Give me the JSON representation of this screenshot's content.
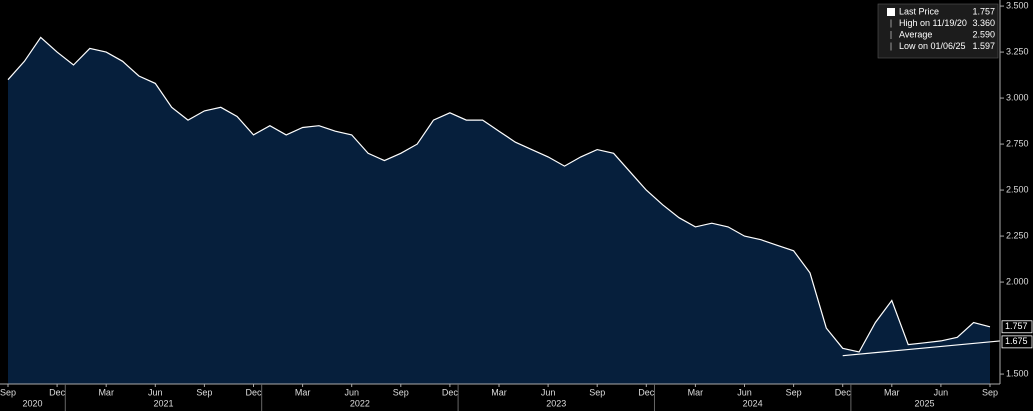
{
  "chart_data": {
    "type": "area",
    "x": [
      "2020-09",
      "2020-10",
      "2020-11",
      "2020-12",
      "2021-01",
      "2021-02",
      "2021-03",
      "2021-04",
      "2021-05",
      "2021-06",
      "2021-07",
      "2021-08",
      "2021-09",
      "2021-10",
      "2021-11",
      "2021-12",
      "2022-01",
      "2022-02",
      "2022-03",
      "2022-04",
      "2022-05",
      "2022-06",
      "2022-07",
      "2022-08",
      "2022-09",
      "2022-10",
      "2022-11",
      "2022-12",
      "2023-01",
      "2023-02",
      "2023-03",
      "2023-04",
      "2023-05",
      "2023-06",
      "2023-07",
      "2023-08",
      "2023-09",
      "2023-10",
      "2023-11",
      "2023-12",
      "2024-01",
      "2024-02",
      "2024-03",
      "2024-04",
      "2024-05",
      "2024-06",
      "2024-07",
      "2024-08",
      "2024-09",
      "2024-10",
      "2024-11",
      "2024-12",
      "2025-01",
      "2025-02",
      "2025-03",
      "2025-04",
      "2025-05",
      "2025-06",
      "2025-07",
      "2025-08",
      "2025-09"
    ],
    "series": [
      {
        "name": "Last Price",
        "color": "#ffffff",
        "fill": "#061f3c",
        "values": [
          3.1,
          3.2,
          3.33,
          3.25,
          3.18,
          3.27,
          3.25,
          3.2,
          3.12,
          3.08,
          2.95,
          2.88,
          2.93,
          2.95,
          2.9,
          2.8,
          2.85,
          2.8,
          2.84,
          2.85,
          2.82,
          2.8,
          2.7,
          2.66,
          2.7,
          2.75,
          2.88,
          2.92,
          2.88,
          2.88,
          2.82,
          2.76,
          2.72,
          2.68,
          2.63,
          2.68,
          2.72,
          2.7,
          2.6,
          2.5,
          2.42,
          2.35,
          2.3,
          2.32,
          2.3,
          2.25,
          2.23,
          2.2,
          2.17,
          2.05,
          1.75,
          1.64,
          1.62,
          1.78,
          1.9,
          1.66,
          1.67,
          1.68,
          1.7,
          1.78,
          1.757
        ]
      }
    ],
    "xlim": [
      "2020-09",
      "2025-09"
    ],
    "xticks": [
      {
        "value": "2020-09",
        "label": "Sep"
      },
      {
        "value": "2020-12",
        "label": "Dec"
      },
      {
        "value": "2021-03",
        "label": "Mar"
      },
      {
        "value": "2021-06",
        "label": "Jun"
      },
      {
        "value": "2021-09",
        "label": "Sep"
      },
      {
        "value": "2021-12",
        "label": "Dec"
      },
      {
        "value": "2022-03",
        "label": "Mar"
      },
      {
        "value": "2022-06",
        "label": "Jun"
      },
      {
        "value": "2022-09",
        "label": "Sep"
      },
      {
        "value": "2022-12",
        "label": "Dec"
      },
      {
        "value": "2023-03",
        "label": "Mar"
      },
      {
        "value": "2023-06",
        "label": "Jun"
      },
      {
        "value": "2023-09",
        "label": "Sep"
      },
      {
        "value": "2023-12",
        "label": "Dec"
      },
      {
        "value": "2024-03",
        "label": "Mar"
      },
      {
        "value": "2024-06",
        "label": "Jun"
      },
      {
        "value": "2024-09",
        "label": "Sep"
      },
      {
        "value": "2024-12",
        "label": "Dec"
      },
      {
        "value": "2025-03",
        "label": "Mar"
      },
      {
        "value": "2025-06",
        "label": "Jun"
      },
      {
        "value": "2025-09",
        "label": "Sep"
      }
    ],
    "years": [
      "2020",
      "2021",
      "2022",
      "2023",
      "2024",
      "2025"
    ],
    "ylim": [
      1.446,
      3.533
    ],
    "yticks": [
      {
        "value": 1.5,
        "label": "1.500"
      },
      {
        "value": 2,
        "label": "2.000"
      },
      {
        "value": 2.25,
        "label": "2.250"
      },
      {
        "value": 2.5,
        "label": "2.500"
      },
      {
        "value": 2.75,
        "label": "2.750"
      },
      {
        "value": 3,
        "label": "3.000"
      },
      {
        "value": 3.25,
        "label": "3.250"
      },
      {
        "value": 3.5,
        "label": "3.500"
      }
    ],
    "legend": [
      {
        "name": "Last Price",
        "value": 1.757
      },
      {
        "name": "High on 11/19/20",
        "value": 3.36,
        "value_label": "3.360"
      },
      {
        "name": "Average",
        "value": 2.59,
        "value_label": "2.590"
      },
      {
        "name": "Low on 01/06/25",
        "value": 1.597
      }
    ],
    "trendline": {
      "x": [
        "2024-12",
        "2025-09"
      ],
      "values": [
        1.6,
        1.675
      ]
    }
  }
}
